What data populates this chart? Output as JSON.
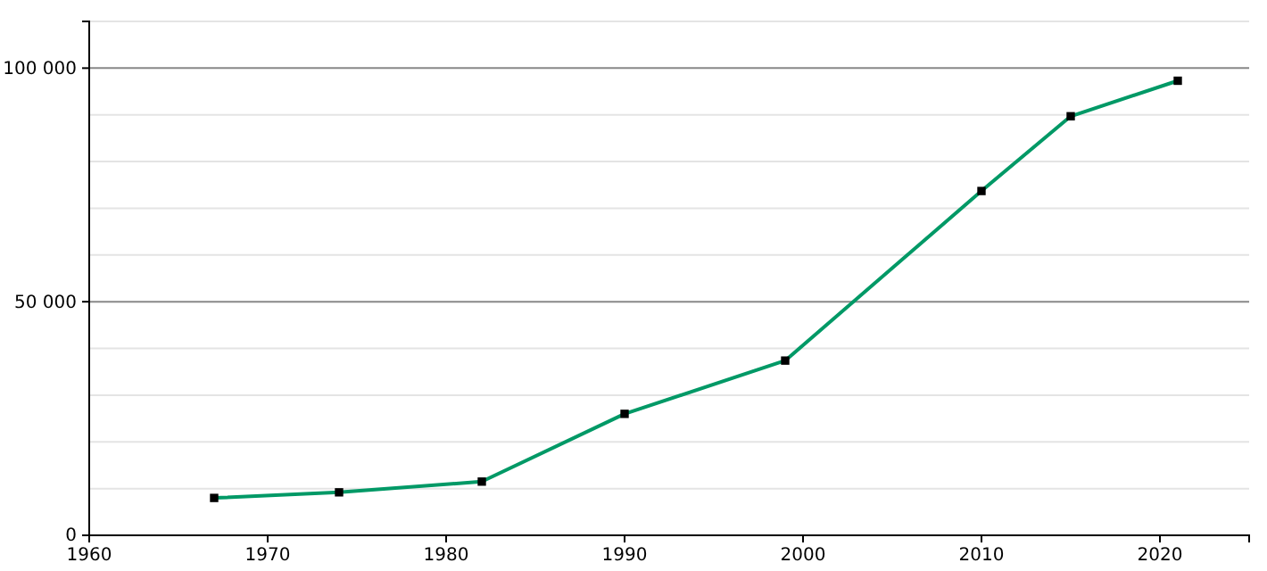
{
  "chart_data": {
    "type": "line",
    "x": [
      1967,
      1974,
      1982,
      1990,
      1999,
      2010,
      2015,
      2021
    ],
    "series": [
      {
        "color": "#009966",
        "values": [
          8000,
          9200,
          11500,
          26000,
          37400,
          73700,
          89700,
          97300
        ]
      }
    ],
    "xlim": [
      1960,
      2025
    ],
    "xticks": [
      1960,
      1970,
      1980,
      1990,
      2000,
      2010,
      2020
    ],
    "ylim": [
      0,
      110000
    ],
    "yticks": [
      0,
      {
        "value": 10000,
        "label": null
      },
      {
        "value": 20000,
        "label": null
      },
      {
        "value": 30000,
        "label": null
      },
      {
        "value": 40000,
        "label": null
      },
      {
        "value": 50000,
        "label": "50 000"
      },
      {
        "value": 60000,
        "label": null
      },
      {
        "value": 70000,
        "label": null
      },
      {
        "value": 80000,
        "label": null
      },
      {
        "value": 90000,
        "label": null
      },
      {
        "value": 100000,
        "label": "100 000"
      },
      {
        "value": 110000,
        "label": null
      }
    ],
    "grid": "y",
    "marker": "square",
    "line_style": "solid"
  }
}
